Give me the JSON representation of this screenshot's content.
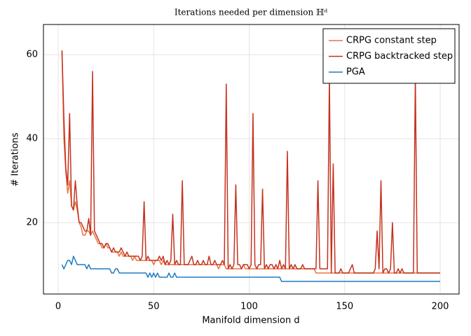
{
  "chart_data": {
    "type": "line",
    "title": "Iterations needed per dimension ℍᵈ",
    "xlabel": "Manifold dimension d",
    "ylabel": "# Iterations",
    "xlim": [
      -7.7,
      209.9
    ],
    "ylim": [
      3,
      67.2
    ],
    "xticks": [
      0,
      50,
      100,
      150,
      200
    ],
    "yticks": [
      20,
      40,
      60
    ],
    "grid": true,
    "legend": "top-right",
    "x": [
      2,
      3,
      4,
      5,
      6,
      7,
      8,
      9,
      10,
      11,
      12,
      13,
      14,
      15,
      16,
      17,
      18,
      19,
      20,
      21,
      22,
      23,
      24,
      25,
      26,
      27,
      28,
      29,
      30,
      31,
      32,
      33,
      34,
      35,
      36,
      37,
      38,
      39,
      40,
      41,
      42,
      43,
      44,
      45,
      46,
      47,
      48,
      49,
      50,
      51,
      52,
      53,
      54,
      55,
      56,
      57,
      58,
      59,
      60,
      61,
      62,
      63,
      64,
      65,
      66,
      67,
      68,
      69,
      70,
      71,
      72,
      73,
      74,
      75,
      76,
      77,
      78,
      79,
      80,
      81,
      82,
      83,
      84,
      85,
      86,
      87,
      88,
      89,
      90,
      91,
      92,
      93,
      94,
      95,
      96,
      97,
      98,
      99,
      100,
      101,
      102,
      103,
      104,
      105,
      106,
      107,
      108,
      109,
      110,
      111,
      112,
      113,
      114,
      115,
      116,
      117,
      118,
      119,
      120,
      121,
      122,
      123,
      124,
      125,
      126,
      127,
      128,
      129,
      130,
      131,
      132,
      133,
      134,
      135,
      136,
      137,
      138,
      139,
      140,
      141,
      142,
      143,
      144,
      145,
      146,
      147,
      148,
      149,
      150,
      151,
      152,
      153,
      154,
      155,
      156,
      157,
      158,
      159,
      160,
      161,
      162,
      163,
      164,
      165,
      166,
      167,
      168,
      169,
      170,
      171,
      172,
      173,
      174,
      175,
      176,
      177,
      178,
      179,
      180,
      181,
      182,
      183,
      184,
      185,
      186,
      187,
      188,
      189,
      190,
      191,
      192,
      193,
      194,
      195,
      196,
      197,
      198,
      199,
      200
    ],
    "series": [
      {
        "name": "CRPG constant step",
        "color": "#e9743f",
        "values": [
          61,
          40,
          32,
          27,
          30,
          24,
          23,
          25,
          23,
          20,
          19,
          17,
          17,
          18,
          18,
          17,
          18,
          17,
          16,
          15,
          15,
          14,
          14,
          15,
          14,
          14,
          13,
          13,
          13,
          13,
          12,
          13,
          12,
          12,
          12,
          12,
          12,
          11,
          12,
          11,
          11,
          11,
          11,
          11,
          11,
          11,
          11,
          11,
          10,
          11,
          11,
          11,
          10,
          11,
          10,
          10,
          10,
          10,
          10,
          10,
          10,
          10,
          10,
          10,
          10,
          10,
          10,
          10,
          10,
          10,
          10,
          10,
          10,
          10,
          10,
          10,
          10,
          10,
          10,
          10,
          10,
          10,
          9,
          10,
          10,
          10,
          9,
          9,
          9,
          9,
          9,
          9,
          9,
          9,
          9,
          10,
          9,
          9,
          9,
          9,
          9,
          9,
          9,
          9,
          9,
          9,
          9,
          9,
          9,
          9,
          9,
          9,
          9,
          9,
          9,
          9,
          9,
          9,
          9,
          9,
          9,
          9,
          9,
          9,
          9,
          9,
          9,
          9,
          9,
          9,
          9,
          9,
          9,
          8,
          8,
          8,
          8,
          8,
          8,
          8,
          8,
          8,
          8,
          8,
          8,
          8,
          8,
          8,
          8,
          8,
          8,
          8,
          8,
          8,
          8,
          8,
          8,
          8,
          8,
          8,
          8,
          8,
          8,
          8,
          8,
          8,
          8,
          8,
          8,
          8,
          8,
          8,
          8,
          8,
          8,
          8,
          8,
          8,
          8,
          8,
          8,
          8,
          8,
          8,
          8,
          8,
          8,
          8,
          8,
          8,
          8,
          8,
          8,
          8,
          8,
          8,
          8,
          8,
          8
        ]
      },
      {
        "name": "CRPG backtracked step",
        "color": "#c4321f",
        "values": [
          61,
          45,
          33,
          29,
          46,
          24,
          23,
          30,
          24,
          20,
          20,
          19,
          18,
          18,
          21,
          17,
          56,
          18,
          17,
          16,
          15,
          15,
          14,
          15,
          15,
          14,
          13,
          14,
          13,
          13,
          13,
          14,
          13,
          12,
          13,
          12,
          12,
          12,
          12,
          12,
          12,
          11,
          12,
          25,
          11,
          12,
          11,
          11,
          11,
          11,
          11,
          12,
          11,
          12,
          10,
          11,
          10,
          11,
          22,
          10,
          11,
          10,
          10,
          30,
          10,
          10,
          10,
          11,
          12,
          10,
          10,
          11,
          10,
          10,
          11,
          10,
          10,
          12,
          10,
          10,
          11,
          10,
          10,
          10,
          11,
          10,
          53,
          9,
          10,
          9,
          10,
          29,
          10,
          10,
          9,
          10,
          10,
          10,
          9,
          10,
          46,
          10,
          9,
          10,
          10,
          28,
          9,
          10,
          9,
          10,
          10,
          9,
          10,
          9,
          11,
          9,
          10,
          9,
          37,
          9,
          10,
          9,
          10,
          9,
          9,
          9,
          10,
          9,
          9,
          9,
          9,
          9,
          9,
          9,
          30,
          9,
          9,
          9,
          9,
          9,
          55,
          8,
          34,
          8,
          8,
          8,
          9,
          8,
          8,
          8,
          8,
          9,
          10,
          8,
          8,
          8,
          8,
          8,
          8,
          8,
          8,
          8,
          8,
          8,
          9,
          18,
          9,
          30,
          8,
          9,
          9,
          8,
          9,
          20,
          8,
          8,
          9,
          8,
          9,
          8,
          8,
          8,
          8,
          8,
          8,
          55,
          8,
          8,
          8,
          8,
          8,
          8,
          8,
          8,
          8,
          8,
          8,
          8,
          8
        ]
      },
      {
        "name": "PGA",
        "color": "#1f7bc1",
        "values": [
          10,
          9,
          10,
          11,
          11,
          10,
          12,
          11,
          10,
          10,
          10,
          10,
          10,
          9,
          10,
          9,
          9,
          9,
          9,
          9,
          9,
          9,
          9,
          9,
          9,
          9,
          8,
          8,
          9,
          9,
          8,
          8,
          8,
          8,
          8,
          8,
          8,
          8,
          8,
          8,
          8,
          8,
          8,
          8,
          8,
          7,
          8,
          7,
          8,
          7,
          8,
          7,
          7,
          7,
          7,
          7,
          8,
          7,
          7,
          8,
          7,
          7,
          7,
          7,
          7,
          7,
          7,
          7,
          7,
          7,
          7,
          7,
          7,
          7,
          7,
          7,
          7,
          7,
          7,
          7,
          7,
          7,
          7,
          7,
          7,
          7,
          7,
          7,
          7,
          7,
          7,
          7,
          7,
          7,
          7,
          7,
          7,
          7,
          7,
          7,
          7,
          7,
          7,
          7,
          7,
          7,
          7,
          7,
          7,
          7,
          7,
          7,
          7,
          7,
          7,
          6,
          6,
          6,
          6,
          6,
          6,
          6,
          6,
          6,
          6,
          6,
          6,
          6,
          6,
          6,
          6,
          6,
          6,
          6,
          6,
          6,
          6,
          6,
          6,
          6,
          6,
          6,
          6,
          6,
          6,
          6,
          6,
          6,
          6,
          6,
          6,
          6,
          6,
          6,
          6,
          6,
          6,
          6,
          6,
          6,
          6,
          6,
          6,
          6,
          6,
          6,
          6,
          6,
          6,
          6,
          6,
          6,
          6,
          6,
          6,
          6,
          6,
          6,
          6,
          6,
          6,
          6,
          6,
          6,
          6,
          6,
          6,
          6,
          6,
          6,
          6,
          6,
          6,
          6,
          6,
          6,
          6,
          6,
          6
        ]
      }
    ]
  }
}
